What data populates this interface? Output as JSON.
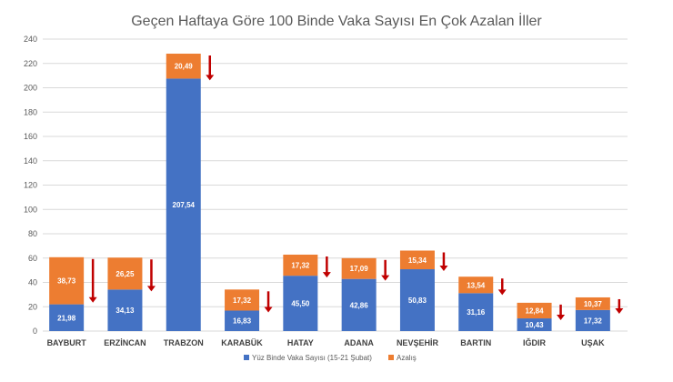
{
  "chart_data": {
    "type": "bar",
    "stacked": true,
    "title": "Geçen Haftaya Göre 100 Binde Vaka Sayısı En Çok Azalan İller",
    "categories": [
      "BAYBURT",
      "ERZİNCAN",
      "TRABZON",
      "KARABÜK",
      "HATAY",
      "ADANA",
      "NEVŞEHİR",
      "BARTIN",
      "IĞDIR",
      "UŞAK"
    ],
    "series": [
      {
        "name": "Yüz Binde Vaka Sayısı (15-21 Şubat)",
        "color": "#4472c4",
        "values": [
          21.98,
          34.13,
          207.54,
          16.83,
          45.5,
          42.86,
          50.83,
          31.16,
          10.43,
          17.32
        ],
        "labels": [
          "21,98",
          "34,13",
          "207,54",
          "16,83",
          "45,50",
          "42,86",
          "50,83",
          "31,16",
          "10,43",
          "17,32"
        ]
      },
      {
        "name": "Azalış",
        "color": "#ed7d31",
        "values": [
          38.73,
          26.25,
          20.49,
          17.32,
          17.32,
          17.09,
          15.34,
          13.54,
          12.84,
          10.37
        ],
        "labels": [
          "38,73",
          "26,25",
          "20,49",
          "17,32",
          "17,32",
          "17,09",
          "15,34",
          "13,54",
          "12,84",
          "10,37"
        ]
      }
    ],
    "ylim": [
      0,
      240
    ],
    "yticks": [
      0,
      20,
      40,
      60,
      80,
      100,
      120,
      140,
      160,
      180,
      200,
      220,
      240
    ],
    "grid": true,
    "legend_position": "bottom",
    "annotation": "down-arrow-icon beside each bar",
    "arrow_color": "#c00000"
  }
}
